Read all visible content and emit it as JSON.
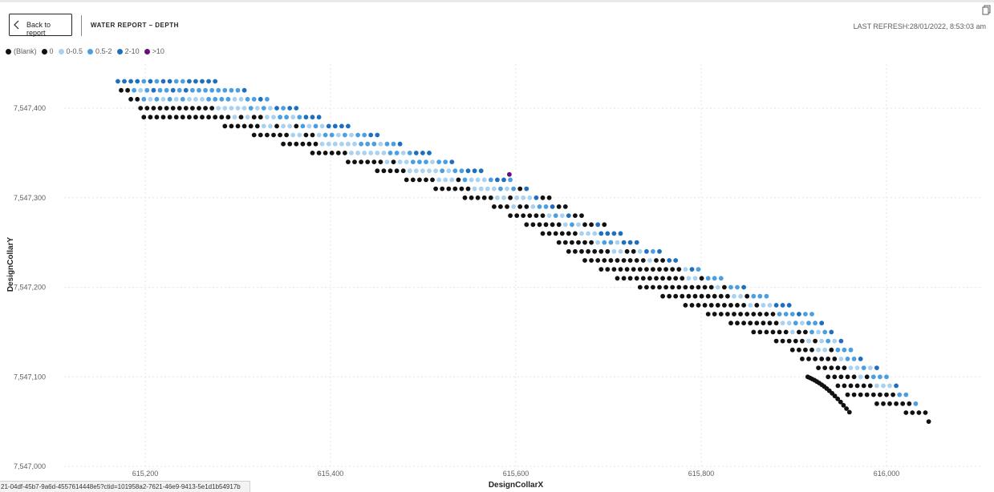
{
  "header": {
    "back_label": "Back to report",
    "title": "WATER REPORT – DEPTH",
    "last_refresh": "LAST REFRESH:28/01/2022, 8:53:03 am"
  },
  "legend": [
    {
      "label": "(Blank)",
      "color": "#111111"
    },
    {
      "label": "0",
      "color": "#111111"
    },
    {
      "label": "0-0.5",
      "color": "#a9d1f0"
    },
    {
      "label": "0.5-2",
      "color": "#4a9fe2"
    },
    {
      "label": "2-10",
      "color": "#1f6fbf"
    },
    {
      "label": ">10",
      "color": "#6a0f7a"
    }
  ],
  "status_text": "21-04df-45b7-9a6d-4557614448e5?ctid=101958a2-7621-46e9-9413-5e1d1b54917b",
  "chart_data": {
    "type": "scatter",
    "xlabel": "DesignCollarX",
    "ylabel": "DesignCollarY",
    "xlim": [
      615100,
      616100
    ],
    "ylim": [
      7547000,
      7547440
    ],
    "xticks": [
      615200,
      615400,
      615600,
      615800,
      616000
    ],
    "xtick_labels": [
      "615,200",
      "615,400",
      "615,600",
      "615,800",
      "616,000"
    ],
    "yticks": [
      7547000,
      7547100,
      7547200,
      7547300,
      7547400
    ],
    "ytick_labels": [
      "7,547,000",
      "7,547,100",
      "7,547,200",
      "7,547,300",
      "7,547,400"
    ],
    "grid": true,
    "legend_position": "top-left",
    "series_colors": {
      "0": "#111111",
      "0-0.5": "#a9d1f0",
      "0.5-2": "#4a9fe2",
      "2-10": "#1f6fbf",
      ">10": "#6a0f7a"
    },
    "pattern": {
      "description": "Grid of drill collars along a diagonal corridor, colored by water depth category",
      "corridor": {
        "top_edge": [
          [
            615170,
            7547434
          ],
          [
            615280,
            7547430
          ],
          [
            615600,
            7547318
          ],
          [
            615770,
            7547233
          ],
          [
            615920,
            7547170
          ],
          [
            616045,
            7547064
          ]
        ],
        "bottom_edge": [
          [
            615175,
            7547418
          ],
          [
            615200,
            7547386
          ],
          [
            615270,
            7547384
          ],
          [
            615580,
            7547288
          ],
          [
            615700,
            7547212
          ],
          [
            615890,
            7547135
          ],
          [
            615960,
            7547078
          ],
          [
            616045,
            7547050
          ]
        ]
      },
      "spacing_x": 7,
      "spacing_y": 10,
      "hook_point_count": 17
    }
  }
}
